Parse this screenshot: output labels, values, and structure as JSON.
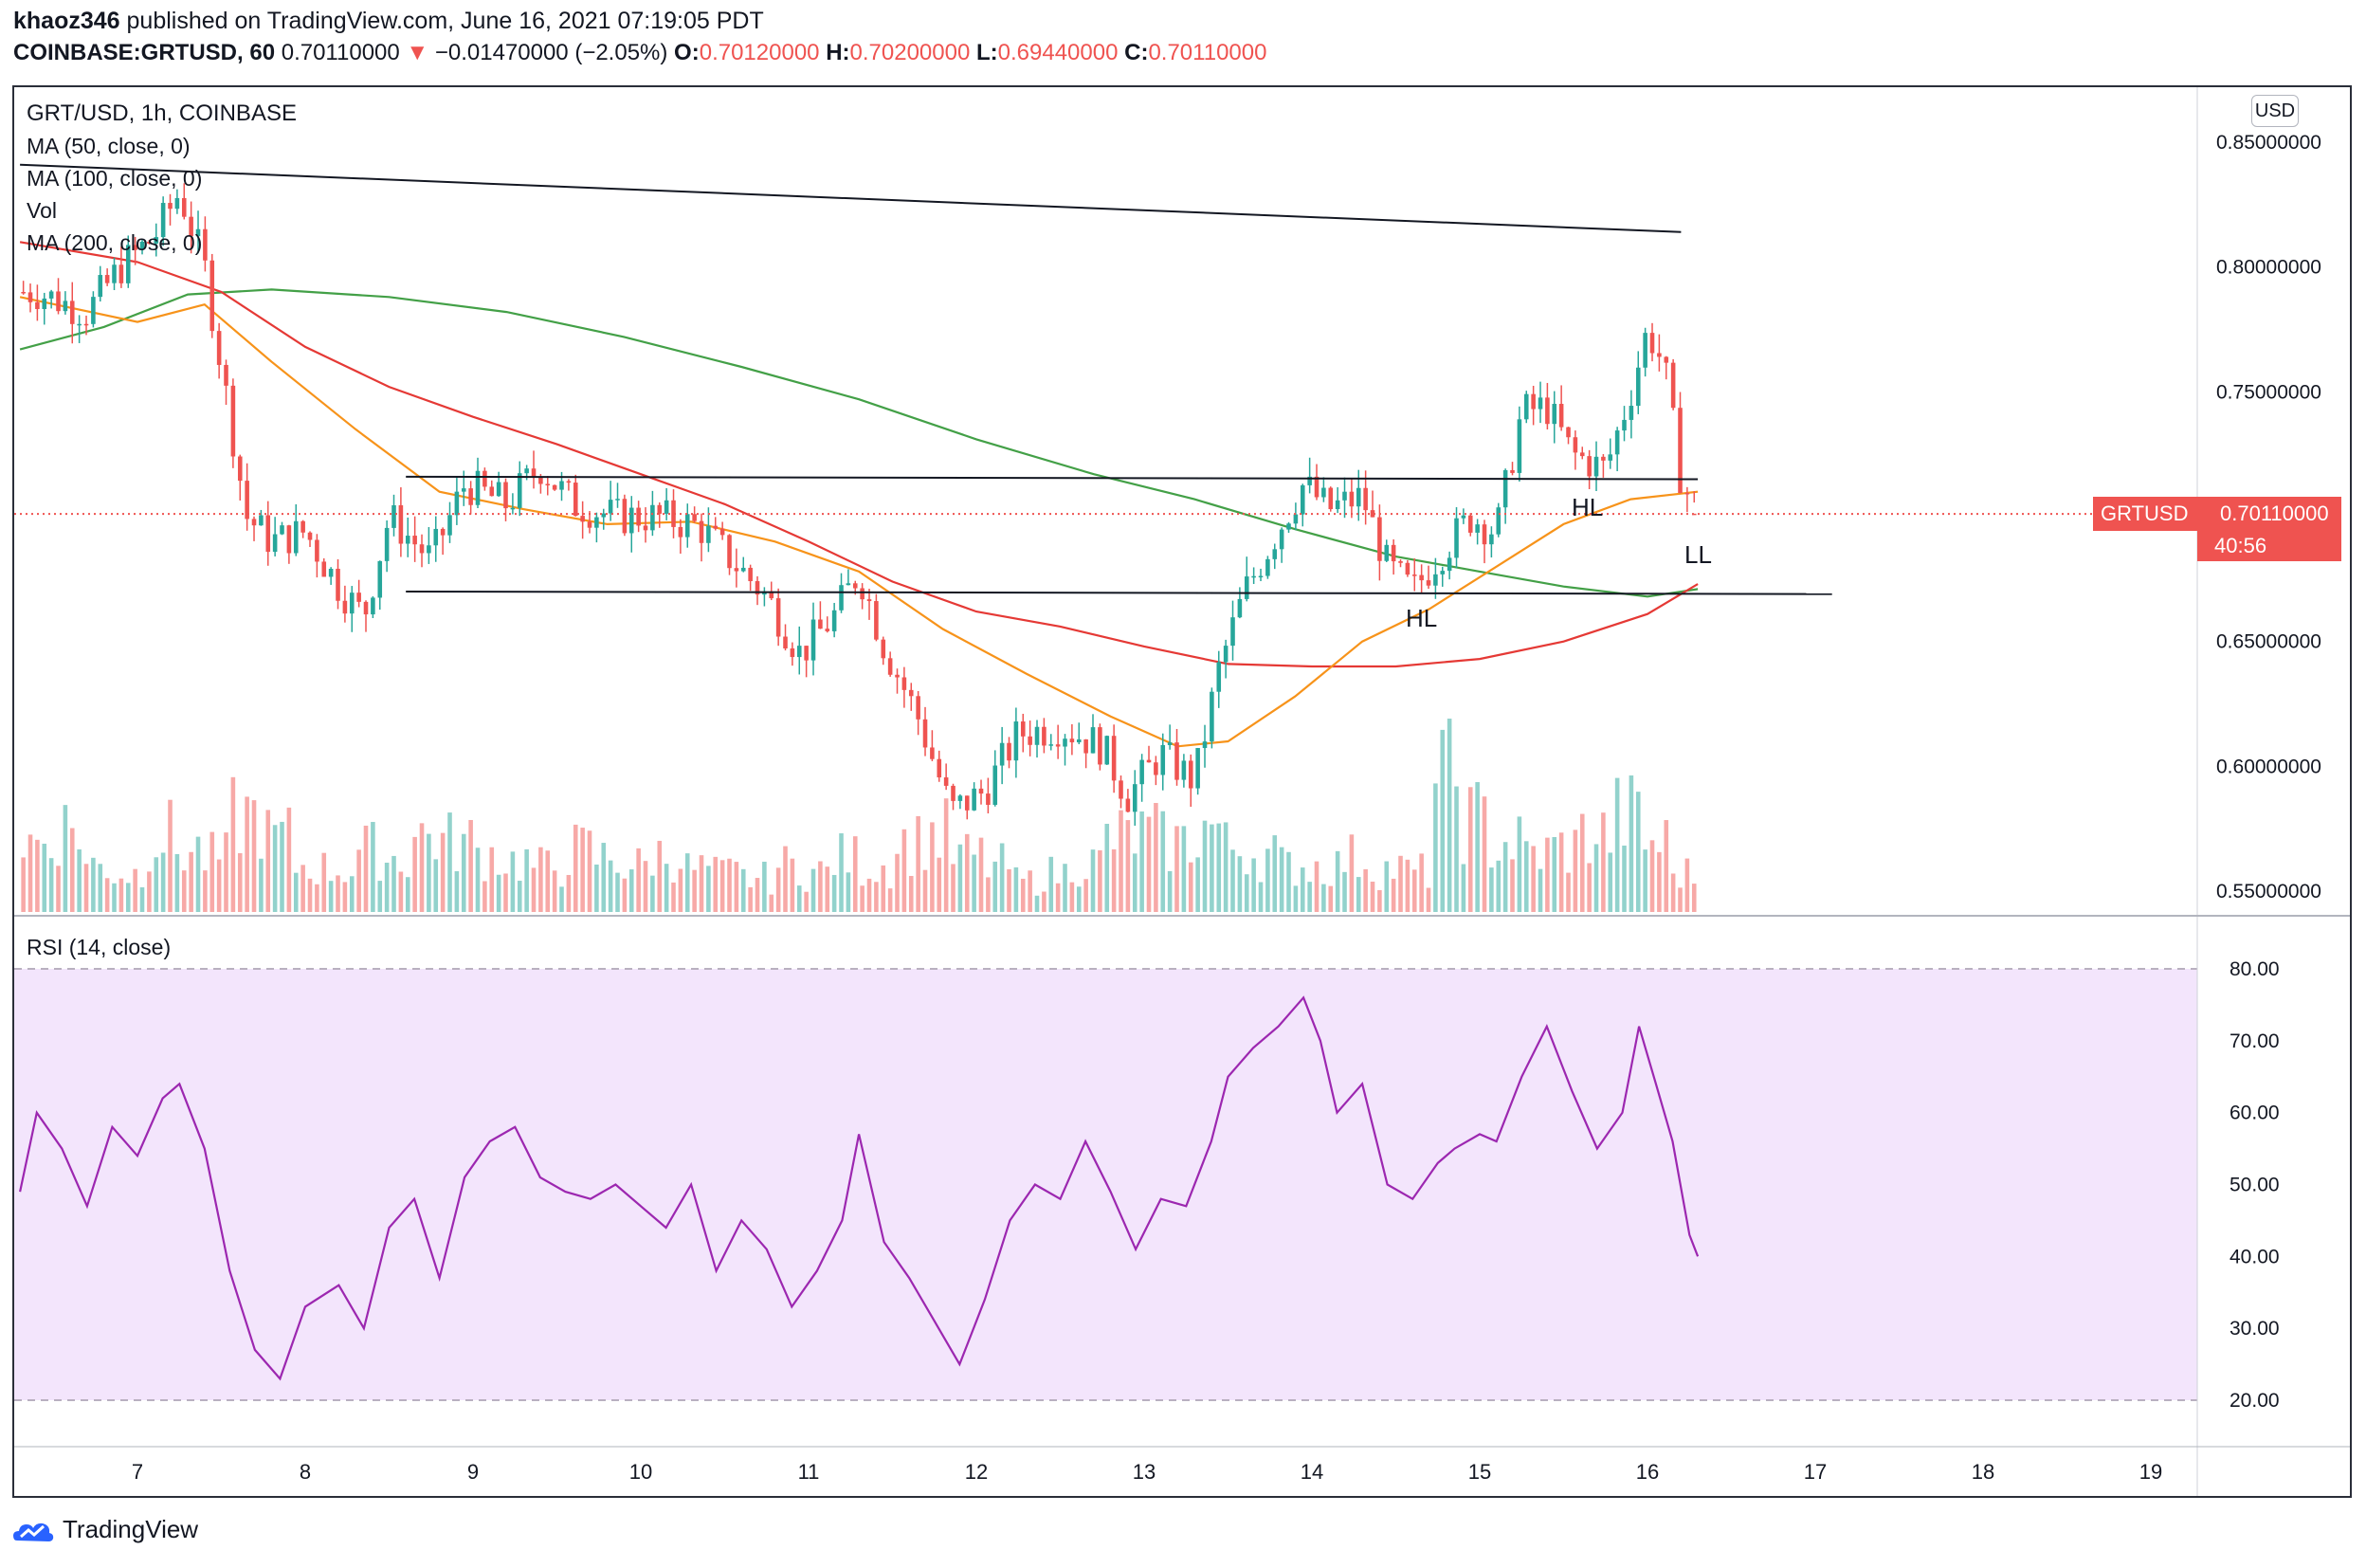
{
  "header": {
    "author": "khaoz346",
    "published_text": "published on TradingView.com, June 16, 2021 07:19:05 PDT",
    "symbol_line": "COINBASE:GRTUSD, 60",
    "last_price": "0.70110000",
    "change_arrow": "▼",
    "change": "−0.01470000 (−2.05%)",
    "ohlc": {
      "o_label": "O:",
      "o": "0.70120000",
      "h_label": "H:",
      "h": "0.70200000",
      "l_label": "L:",
      "l": "0.69440000",
      "c_label": "C:",
      "c": "0.70110000"
    }
  },
  "legend": {
    "title": "GRT/USD, 1h, COINBASE",
    "ma50": "MA (50, close, 0)",
    "ma100": "MA (100, close, 0)",
    "vol": "Vol",
    "ma200": "MA (200, close, 0)",
    "rsi": "RSI (14, close)"
  },
  "price_axis": {
    "currency": "USD",
    "ticks": [
      "0.85000000",
      "0.80000000",
      "0.75000000",
      "0.70000000",
      "0.65000000",
      "0.60000000",
      "0.55000000"
    ],
    "current_symbol": "GRTUSD",
    "current_value": "0.70110000",
    "countdown": "40:56"
  },
  "rsi_axis": {
    "ticks": [
      "80.00",
      "70.00",
      "60.00",
      "50.00",
      "40.00",
      "30.00",
      "20.00"
    ]
  },
  "time_axis": {
    "ticks": [
      "7",
      "8",
      "9",
      "10",
      "11",
      "12",
      "13",
      "14",
      "15",
      "16",
      "17",
      "18",
      "19"
    ]
  },
  "annotations": {
    "hl1": "HL",
    "hl2": "HL",
    "ll": "LL"
  },
  "branding": {
    "name": "TradingView"
  },
  "colors": {
    "up": "#26a69a",
    "down": "#ef5350",
    "ma50": "#f7931a",
    "ma100": "#e53935",
    "ma200": "#43a047",
    "rsi": "#9c27b0",
    "rsi_band": "#f3e5fc"
  },
  "chart_data": {
    "type": "candlestick",
    "symbol": "GRT/USD",
    "interval": "1h",
    "exchange": "COINBASE",
    "y_range": [
      0.535,
      0.865
    ],
    "x_range_days": [
      6.3,
      19.3
    ],
    "candles_approx_close": [
      {
        "t": 6.4,
        "c": 0.79
      },
      {
        "t": 6.7,
        "c": 0.782
      },
      {
        "t": 6.9,
        "c": 0.8
      },
      {
        "t": 7.1,
        "c": 0.812
      },
      {
        "t": 7.25,
        "c": 0.83
      },
      {
        "t": 7.4,
        "c": 0.8
      },
      {
        "t": 7.5,
        "c": 0.76
      },
      {
        "t": 7.65,
        "c": 0.7
      },
      {
        "t": 7.8,
        "c": 0.69
      },
      {
        "t": 8.0,
        "c": 0.694
      },
      {
        "t": 8.2,
        "c": 0.672
      },
      {
        "t": 8.35,
        "c": 0.66
      },
      {
        "t": 8.5,
        "c": 0.7
      },
      {
        "t": 8.75,
        "c": 0.683
      },
      {
        "t": 8.95,
        "c": 0.713
      },
      {
        "t": 9.2,
        "c": 0.705
      },
      {
        "t": 9.4,
        "c": 0.72
      },
      {
        "t": 9.6,
        "c": 0.705
      },
      {
        "t": 9.85,
        "c": 0.7
      },
      {
        "t": 10.1,
        "c": 0.7
      },
      {
        "t": 10.35,
        "c": 0.696
      },
      {
        "t": 10.55,
        "c": 0.682
      },
      {
        "t": 10.75,
        "c": 0.668
      },
      {
        "t": 10.95,
        "c": 0.645
      },
      {
        "t": 11.15,
        "c": 0.66
      },
      {
        "t": 11.3,
        "c": 0.678
      },
      {
        "t": 11.45,
        "c": 0.648
      },
      {
        "t": 11.65,
        "c": 0.62
      },
      {
        "t": 11.85,
        "c": 0.582
      },
      {
        "t": 12.05,
        "c": 0.59
      },
      {
        "t": 12.25,
        "c": 0.613
      },
      {
        "t": 12.5,
        "c": 0.616
      },
      {
        "t": 12.75,
        "c": 0.608
      },
      {
        "t": 12.9,
        "c": 0.588
      },
      {
        "t": 13.1,
        "c": 0.605
      },
      {
        "t": 13.3,
        "c": 0.594
      },
      {
        "t": 13.45,
        "c": 0.64
      },
      {
        "t": 13.6,
        "c": 0.67
      },
      {
        "t": 13.8,
        "c": 0.695
      },
      {
        "t": 13.95,
        "c": 0.713
      },
      {
        "t": 14.1,
        "c": 0.703
      },
      {
        "t": 14.3,
        "c": 0.708
      },
      {
        "t": 14.45,
        "c": 0.68
      },
      {
        "t": 14.6,
        "c": 0.67
      },
      {
        "t": 14.75,
        "c": 0.684
      },
      {
        "t": 14.95,
        "c": 0.7
      },
      {
        "t": 15.1,
        "c": 0.694
      },
      {
        "t": 15.25,
        "c": 0.742
      },
      {
        "t": 15.4,
        "c": 0.744
      },
      {
        "t": 15.55,
        "c": 0.725
      },
      {
        "t": 15.75,
        "c": 0.719
      },
      {
        "t": 15.9,
        "c": 0.75
      },
      {
        "t": 16.0,
        "c": 0.775
      },
      {
        "t": 16.1,
        "c": 0.76
      },
      {
        "t": 16.2,
        "c": 0.715
      },
      {
        "t": 16.3,
        "c": 0.7011
      }
    ],
    "trendlines": [
      {
        "from": {
          "t": 6.3,
          "p": 0.841
        },
        "to": {
          "t": 16.2,
          "p": 0.814
        }
      },
      {
        "from": {
          "t": 8.6,
          "p": 0.716
        },
        "to": {
          "t": 16.3,
          "p": 0.715
        }
      },
      {
        "from": {
          "t": 8.6,
          "p": 0.67
        },
        "to": {
          "t": 17.1,
          "p": 0.669
        }
      }
    ],
    "ma50": [
      [
        6.3,
        0.788
      ],
      [
        7.0,
        0.778
      ],
      [
        7.4,
        0.785
      ],
      [
        7.8,
        0.762
      ],
      [
        8.3,
        0.735
      ],
      [
        8.8,
        0.71
      ],
      [
        9.3,
        0.703
      ],
      [
        9.8,
        0.697
      ],
      [
        10.3,
        0.698
      ],
      [
        10.8,
        0.69
      ],
      [
        11.3,
        0.678
      ],
      [
        11.8,
        0.655
      ],
      [
        12.3,
        0.637
      ],
      [
        12.8,
        0.62
      ],
      [
        13.2,
        0.608
      ],
      [
        13.5,
        0.61
      ],
      [
        13.9,
        0.628
      ],
      [
        14.3,
        0.65
      ],
      [
        14.7,
        0.663
      ],
      [
        15.1,
        0.68
      ],
      [
        15.5,
        0.697
      ],
      [
        15.9,
        0.707
      ],
      [
        16.3,
        0.71
      ]
    ],
    "ma100": [
      [
        6.3,
        0.81
      ],
      [
        7.0,
        0.802
      ],
      [
        7.5,
        0.79
      ],
      [
        8.0,
        0.768
      ],
      [
        8.5,
        0.752
      ],
      [
        9.0,
        0.74
      ],
      [
        9.5,
        0.729
      ],
      [
        10.0,
        0.717
      ],
      [
        10.5,
        0.705
      ],
      [
        11.0,
        0.69
      ],
      [
        11.5,
        0.674
      ],
      [
        12.0,
        0.662
      ],
      [
        12.5,
        0.656
      ],
      [
        13.0,
        0.648
      ],
      [
        13.5,
        0.641
      ],
      [
        14.0,
        0.64
      ],
      [
        14.5,
        0.64
      ],
      [
        15.0,
        0.643
      ],
      [
        15.5,
        0.65
      ],
      [
        16.0,
        0.661
      ],
      [
        16.3,
        0.673
      ]
    ],
    "ma200": [
      [
        6.3,
        0.767
      ],
      [
        6.8,
        0.776
      ],
      [
        7.3,
        0.789
      ],
      [
        7.8,
        0.791
      ],
      [
        8.5,
        0.788
      ],
      [
        9.2,
        0.782
      ],
      [
        9.9,
        0.772
      ],
      [
        10.6,
        0.76
      ],
      [
        11.3,
        0.747
      ],
      [
        12.0,
        0.731
      ],
      [
        12.7,
        0.717
      ],
      [
        13.3,
        0.707
      ],
      [
        13.9,
        0.695
      ],
      [
        14.5,
        0.684
      ],
      [
        15.0,
        0.678
      ],
      [
        15.5,
        0.672
      ],
      [
        16.0,
        0.668
      ],
      [
        16.3,
        0.671
      ]
    ],
    "volume_relative": [
      0.45,
      0.55,
      0.3,
      0.25,
      0.5,
      0.4,
      0.35,
      0.62,
      0.48,
      0.3,
      0.28,
      0.4,
      0.35,
      0.5,
      0.45,
      0.38,
      0.33,
      0.29,
      0.4,
      0.35,
      0.3,
      0.37,
      0.28,
      0.25,
      0.22,
      0.3,
      0.26,
      0.35,
      0.3,
      0.45,
      0.5,
      0.36,
      0.3,
      0.2,
      0.25,
      0.32,
      0.48,
      0.5,
      0.45,
      0.55,
      0.42,
      0.38,
      0.3,
      0.3,
      0.35,
      0.28,
      0.26,
      0.85,
      0.6,
      0.45,
      0.38,
      0.42,
      0.5,
      0.62,
      0.45,
      0.25
    ],
    "rsi": [
      [
        6.3,
        49
      ],
      [
        6.4,
        60
      ],
      [
        6.55,
        55
      ],
      [
        6.7,
        47
      ],
      [
        6.85,
        58
      ],
      [
        7.0,
        54
      ],
      [
        7.15,
        62
      ],
      [
        7.25,
        64
      ],
      [
        7.4,
        55
      ],
      [
        7.55,
        38
      ],
      [
        7.7,
        27
      ],
      [
        7.85,
        23
      ],
      [
        8.0,
        33
      ],
      [
        8.2,
        36
      ],
      [
        8.35,
        30
      ],
      [
        8.5,
        44
      ],
      [
        8.65,
        48
      ],
      [
        8.8,
        37
      ],
      [
        8.95,
        51
      ],
      [
        9.1,
        56
      ],
      [
        9.25,
        58
      ],
      [
        9.4,
        51
      ],
      [
        9.55,
        49
      ],
      [
        9.7,
        48
      ],
      [
        9.85,
        50
      ],
      [
        10.0,
        47
      ],
      [
        10.15,
        44
      ],
      [
        10.3,
        50
      ],
      [
        10.45,
        38
      ],
      [
        10.6,
        45
      ],
      [
        10.75,
        41
      ],
      [
        10.9,
        33
      ],
      [
        11.05,
        38
      ],
      [
        11.2,
        45
      ],
      [
        11.3,
        57
      ],
      [
        11.45,
        42
      ],
      [
        11.6,
        37
      ],
      [
        11.75,
        31
      ],
      [
        11.9,
        25
      ],
      [
        12.05,
        34
      ],
      [
        12.2,
        45
      ],
      [
        12.35,
        50
      ],
      [
        12.5,
        48
      ],
      [
        12.65,
        56
      ],
      [
        12.8,
        49
      ],
      [
        12.95,
        41
      ],
      [
        13.1,
        48
      ],
      [
        13.25,
        47
      ],
      [
        13.4,
        56
      ],
      [
        13.5,
        65
      ],
      [
        13.65,
        69
      ],
      [
        13.8,
        72
      ],
      [
        13.95,
        76
      ],
      [
        14.05,
        70
      ],
      [
        14.15,
        60
      ],
      [
        14.3,
        64
      ],
      [
        14.45,
        50
      ],
      [
        14.6,
        48
      ],
      [
        14.75,
        53
      ],
      [
        14.85,
        55
      ],
      [
        15.0,
        57
      ],
      [
        15.1,
        56
      ],
      [
        15.25,
        65
      ],
      [
        15.4,
        72
      ],
      [
        15.55,
        63
      ],
      [
        15.7,
        55
      ],
      [
        15.85,
        60
      ],
      [
        15.95,
        72
      ],
      [
        16.05,
        64
      ],
      [
        16.15,
        56
      ],
      [
        16.25,
        43
      ],
      [
        16.3,
        40
      ]
    ]
  }
}
